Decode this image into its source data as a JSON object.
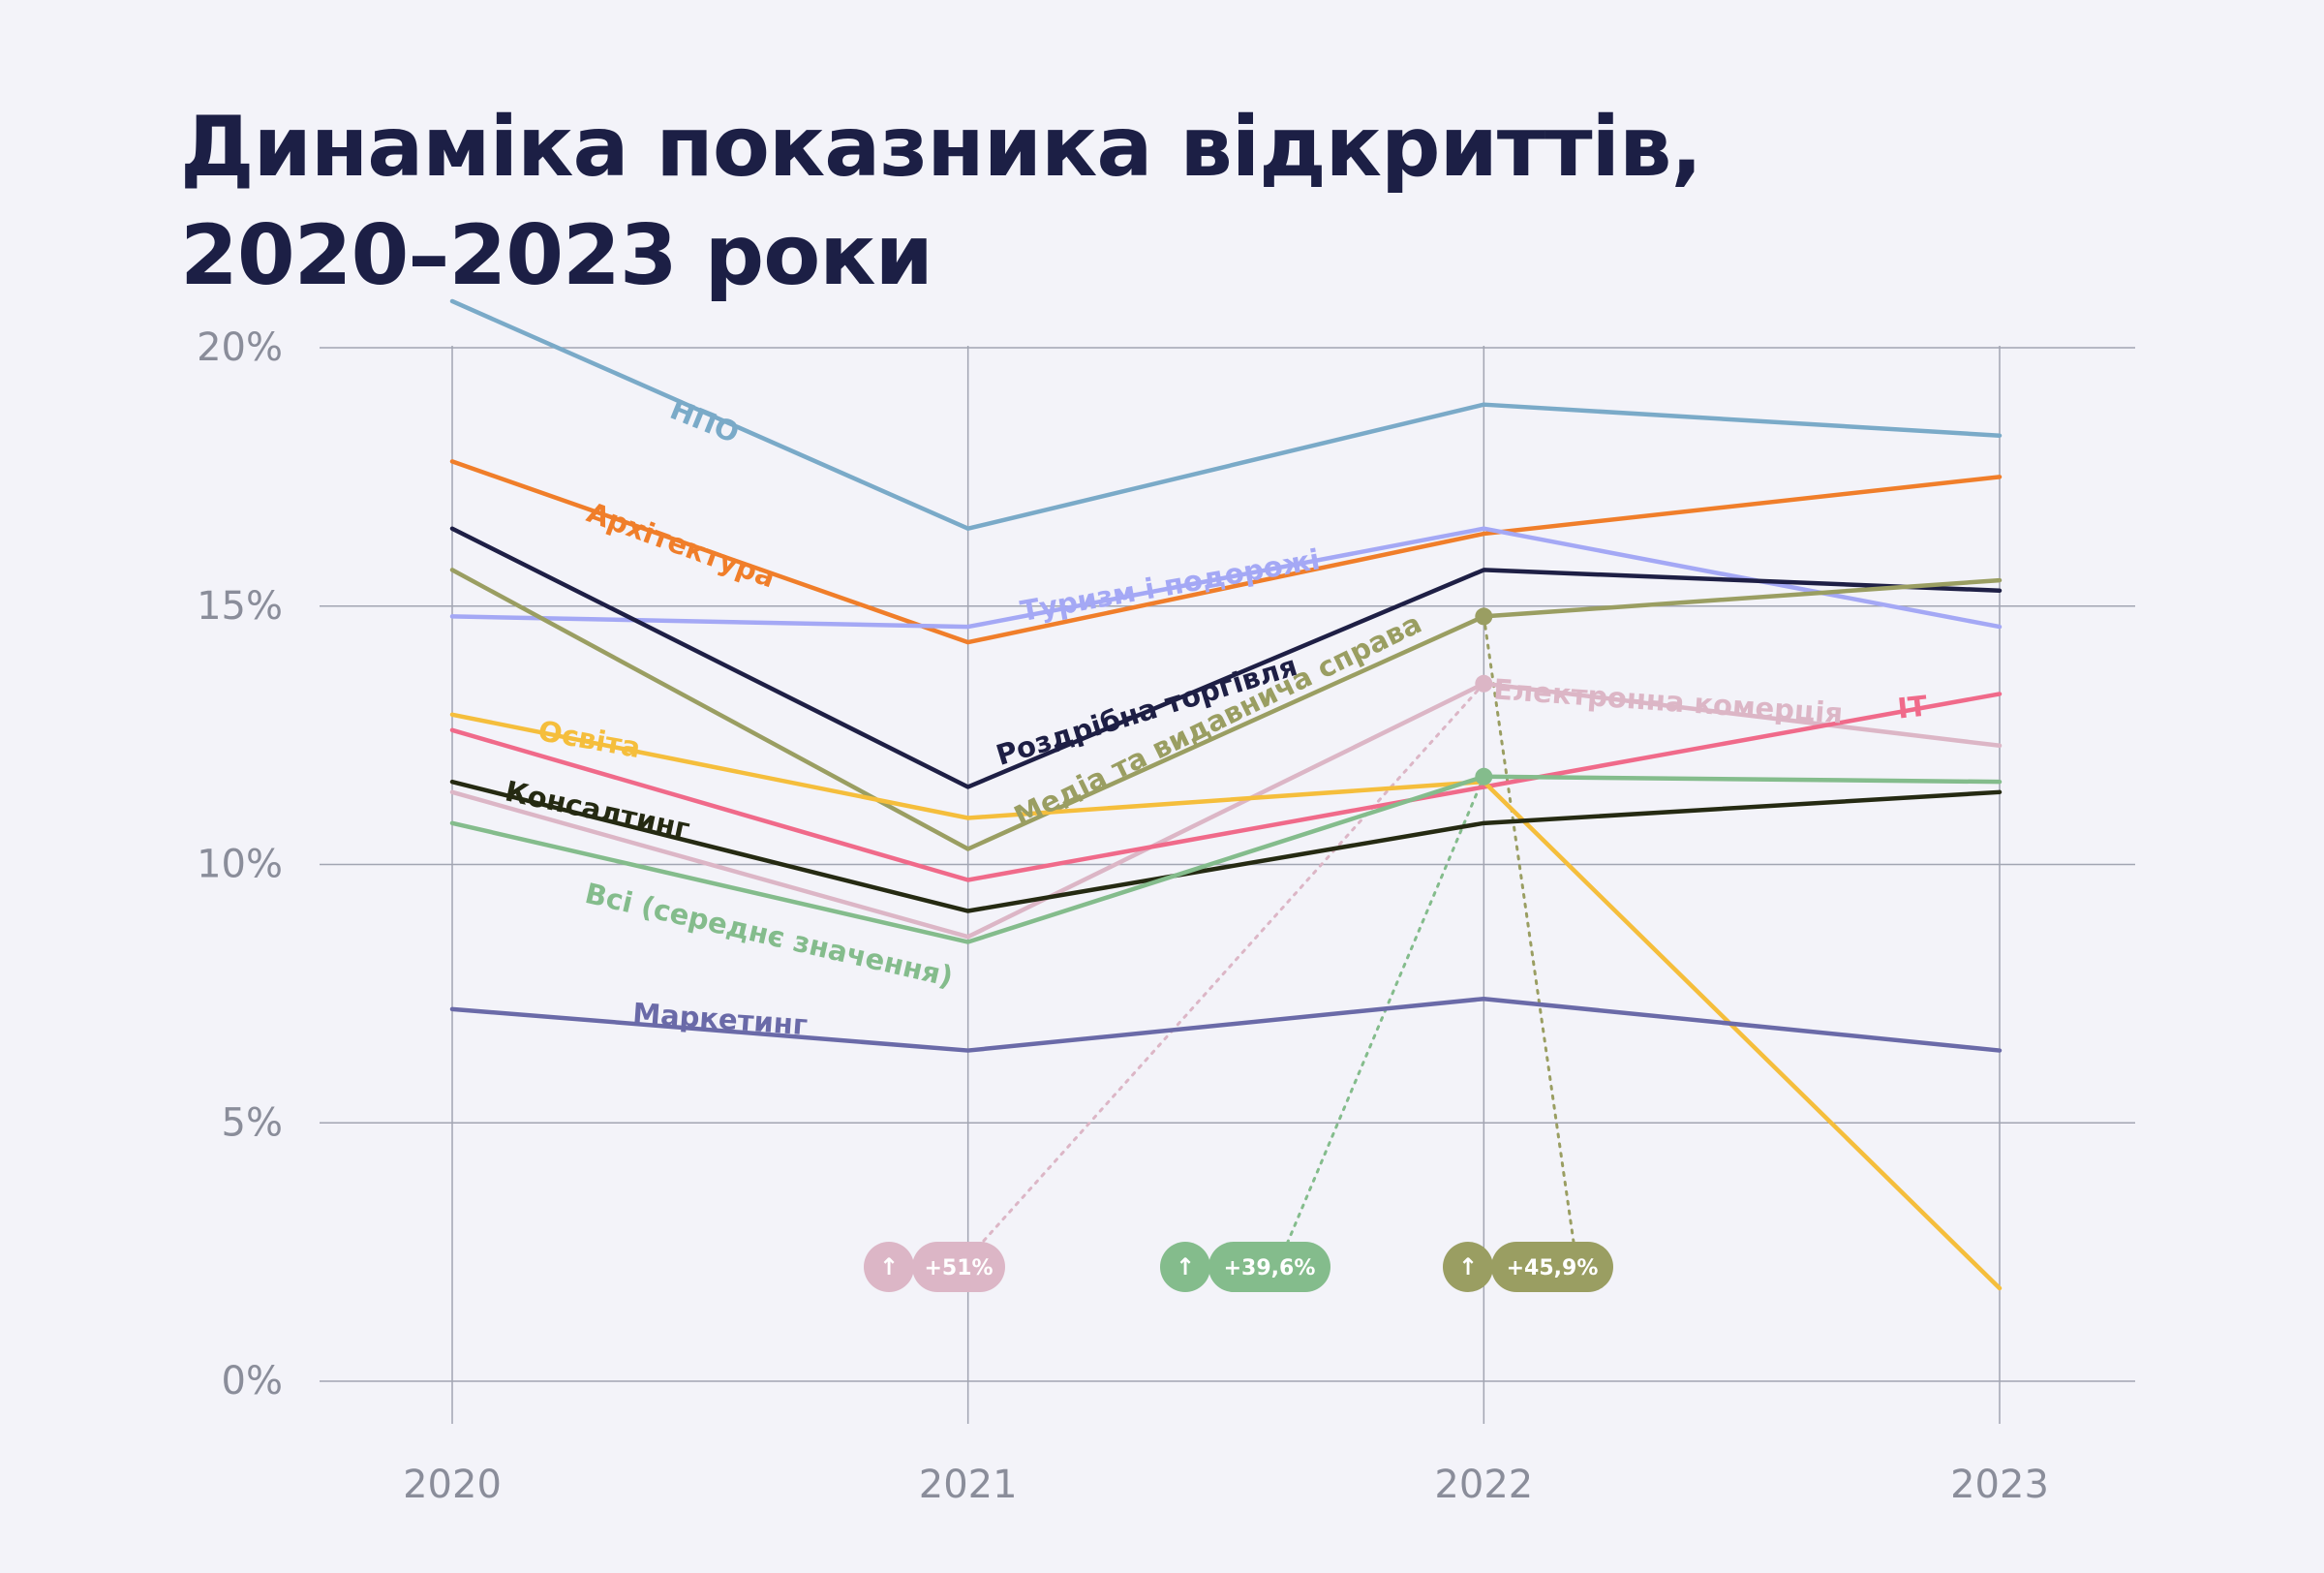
{
  "title": {
    "line1": "Динаміка показника відкриттів,",
    "line2": "2020–2023 роки"
  },
  "chart_data": {
    "type": "line",
    "x": [
      "2020",
      "2021",
      "2022",
      "2023"
    ],
    "y_ticks": [
      "0%",
      "5%",
      "10%",
      "15%",
      "20%"
    ],
    "ylim": [
      0,
      20
    ],
    "grid": true,
    "series": [
      {
        "name": "НПО",
        "color": "#7aaac8",
        "values": [
          20.9,
          16.5,
          18.9,
          18.3
        ]
      },
      {
        "name": "Архітектура",
        "color": "#f07e2a",
        "values": [
          17.8,
          14.3,
          16.4,
          17.5
        ]
      },
      {
        "name": "Туризм і подорожі",
        "color": "#a4a8f5",
        "values": [
          14.8,
          14.6,
          16.5,
          14.6
        ]
      },
      {
        "name": "Роздрібна торгівля",
        "color": "#1e1f45",
        "values": [
          16.5,
          11.5,
          15.7,
          15.3
        ]
      },
      {
        "name": "Медіа та видавнича справа",
        "color": "#9a9e62",
        "values": [
          15.7,
          10.3,
          14.8,
          15.5
        ]
      },
      {
        "name": "Електронна комерція",
        "color": "#dcb6c6",
        "values": [
          11.4,
          8.6,
          13.5,
          12.3
        ]
      },
      {
        "name": "IT",
        "color": "#f06a8a",
        "values": [
          12.6,
          9.7,
          11.5,
          13.3
        ]
      },
      {
        "name": "Освіта",
        "color": "#f5be3c",
        "values": [
          12.9,
          10.9,
          11.6,
          1.8
        ]
      },
      {
        "name": "Консалтинг",
        "color": "#252a12",
        "values": [
          11.6,
          9.1,
          10.8,
          11.4
        ]
      },
      {
        "name": "Всі (середнє значення)",
        "color": "#84bc8c",
        "values": [
          10.8,
          8.5,
          11.7,
          11.6
        ]
      },
      {
        "name": "Маркетинг",
        "color": "#6a6aa8",
        "values": [
          7.2,
          6.4,
          7.4,
          6.4
        ]
      }
    ],
    "annotations": [
      {
        "label": "+51%",
        "arrow": "↑",
        "series": "Електронна комерція",
        "color": "#dcb6c6"
      },
      {
        "label": "+39,6%",
        "arrow": "↑",
        "series": "Всі (середнє значення)",
        "color": "#84bc8c"
      },
      {
        "label": "+45,9%",
        "arrow": "↑",
        "series": "Медіа та видавнича справа",
        "color": "#9a9e62"
      }
    ]
  }
}
